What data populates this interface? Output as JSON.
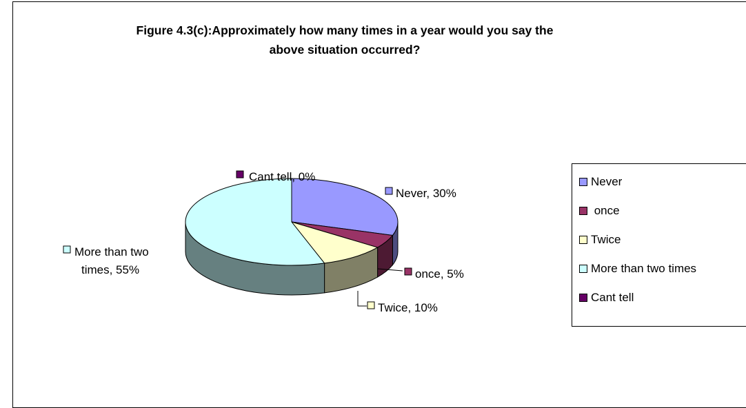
{
  "chart_data": {
    "type": "pie",
    "title": "Figure 4.3(c):Approximately how many times in a year would you say the above situation occurred?",
    "title_lines": [
      "Figure 4.3(c):Approximately how many times in a year would you say the",
      "above situation occurred?"
    ],
    "three_d": true,
    "legend_position": "right",
    "categories": [
      "Never",
      " once",
      "Twice",
      "More than two times",
      "Cant tell"
    ],
    "values": [
      30,
      5,
      10,
      55,
      0
    ],
    "unit": "%",
    "colors": [
      "#9999ff",
      "#993366",
      "#ffffcc",
      "#ccffff",
      "#660066"
    ],
    "data_labels": [
      {
        "category": "Never",
        "lines": [
          "Never, 30%"
        ]
      },
      {
        "category": "once",
        "lines": [
          "once, 5%"
        ]
      },
      {
        "category": "Twice",
        "lines": [
          "Twice, 10%"
        ]
      },
      {
        "category": "More than two times",
        "lines": [
          "More than two",
          "times, 55%"
        ]
      },
      {
        "category": "Cant tell",
        "lines": [
          "Cant tell, 0%"
        ]
      }
    ]
  }
}
